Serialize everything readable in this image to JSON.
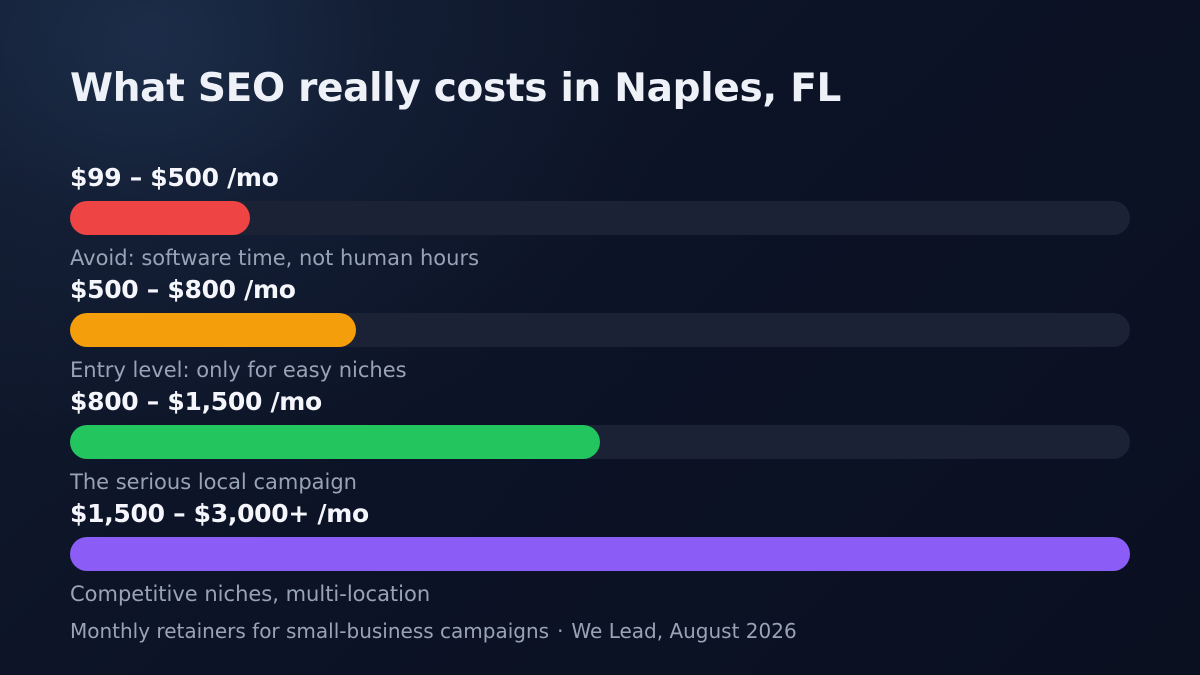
{
  "title": "What SEO really costs in Naples, FL",
  "chart_data": {
    "type": "bar",
    "orientation": "horizontal",
    "title": "What SEO really costs in Naples, FL",
    "categories": [
      "$99 – $500 /mo",
      "$500 – $800 /mo",
      "$800 – $1,500 /mo",
      "$1,500 – $3,000+ /mo"
    ],
    "values": [
      0.17,
      0.27,
      0.5,
      1.0
    ],
    "annotations": [
      "Avoid: software time, not human hours",
      "Entry level: only for easy niches",
      "The serious local campaign",
      "Competitive niches, multi-location"
    ],
    "colors": [
      "#ef4444",
      "#f59e0b",
      "#22c55e",
      "#8b5cf6"
    ],
    "track_color": "#1b2236",
    "grid": false
  },
  "footer": {
    "caption": "Monthly retainers for small-business campaigns",
    "separator": "·",
    "source": "We Lead, August 2026"
  }
}
